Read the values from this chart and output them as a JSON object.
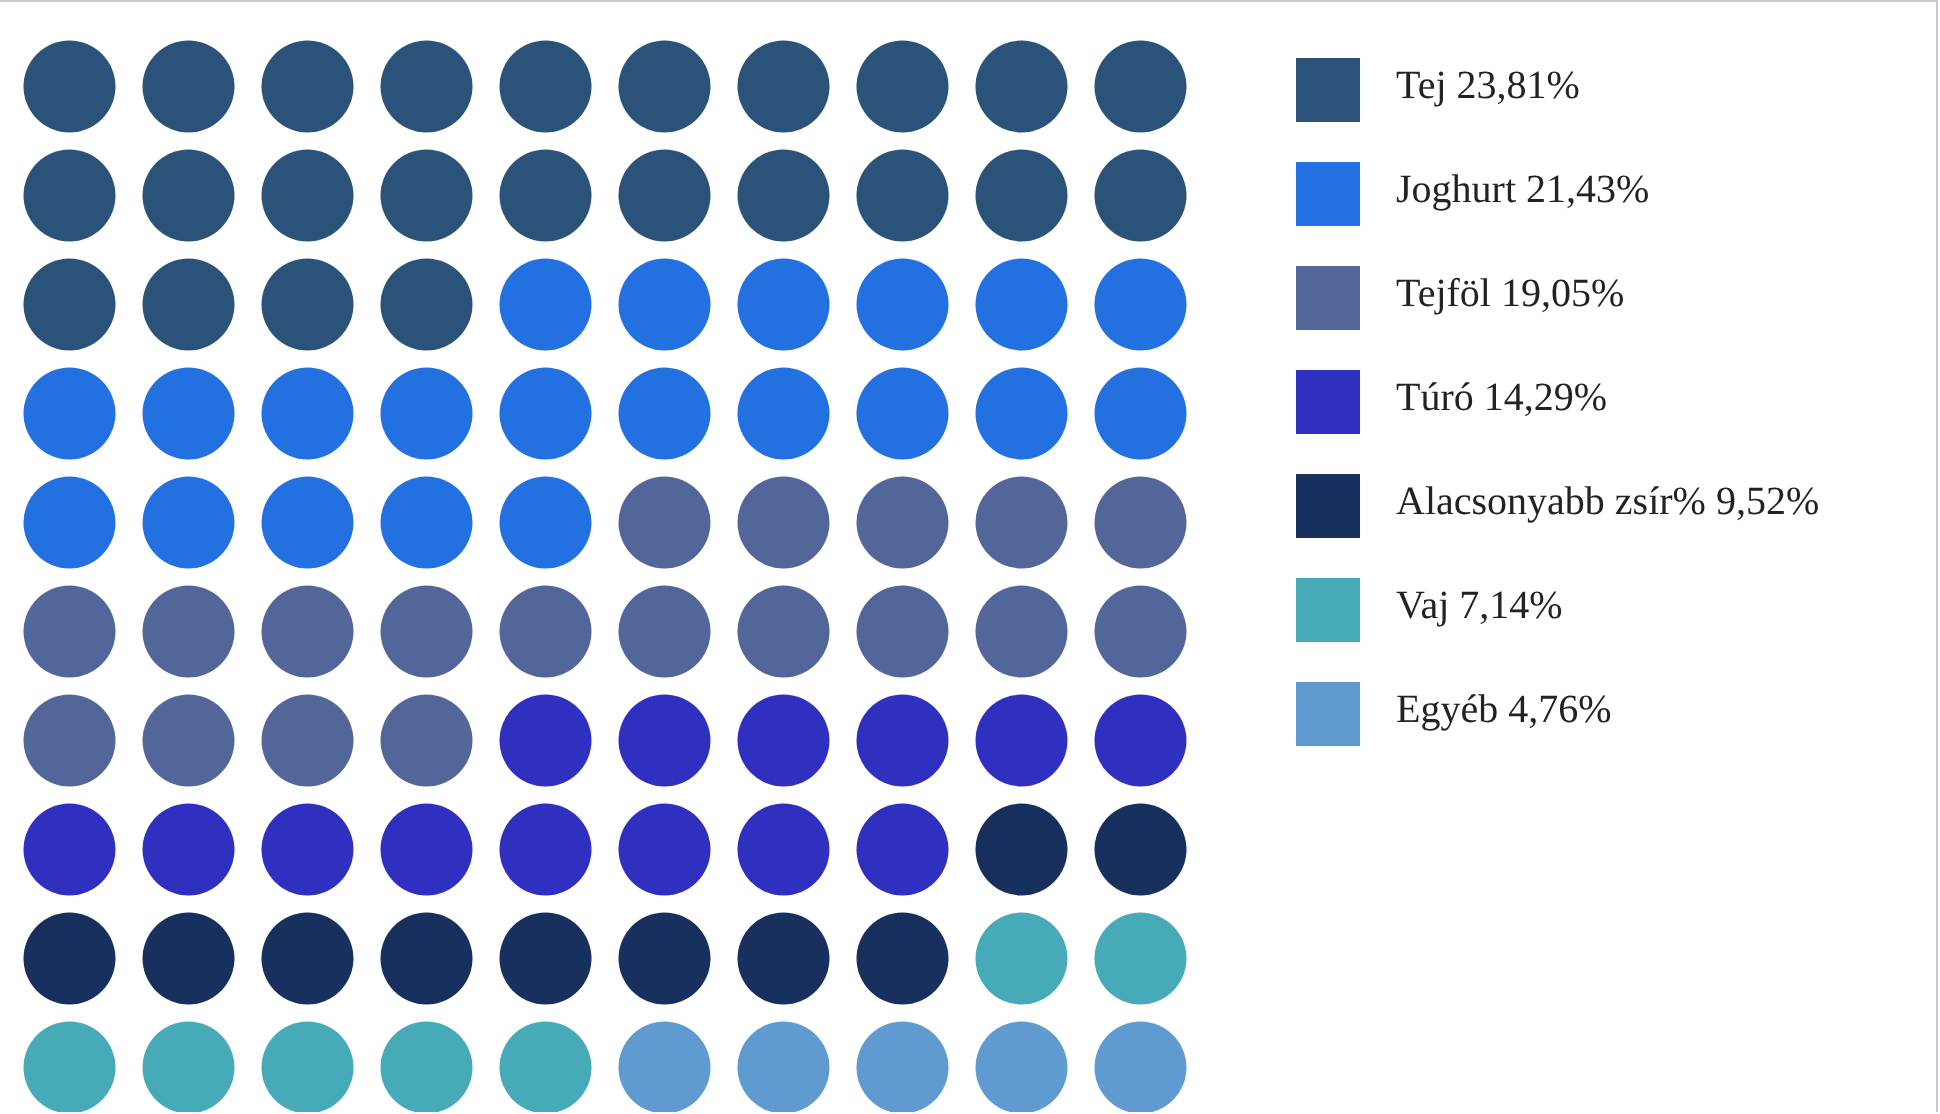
{
  "chart_data": {
    "type": "other",
    "legend": "right",
    "series": [
      {
        "name": "Tej",
        "color": "#2b5278",
        "values": [
          23.81
        ],
        "value_labels": [
          "23,81%"
        ]
      },
      {
        "name": "Joghurt",
        "color": "#2370e0",
        "values": [
          21.43
        ],
        "value_labels": [
          "21,43%"
        ]
      },
      {
        "name": "Tejföl",
        "color": "#53669a",
        "values": [
          19.05
        ],
        "value_labels": [
          "19,05%"
        ]
      },
      {
        "name": "Túró",
        "color": "#2f2fc0",
        "values": [
          14.29
        ],
        "value_labels": [
          "14,29%"
        ]
      },
      {
        "name": "Alacsonyabb zsír%",
        "color": "#17305e",
        "values": [
          9.52
        ],
        "value_labels": [
          "9,52%"
        ]
      },
      {
        "name": "Vaj",
        "color": "#46aab8",
        "values": [
          7.14
        ],
        "value_labels": [
          "7,14%"
        ]
      },
      {
        "name": "Egyéb",
        "color": "#5f9bd0",
        "values": [
          4.76
        ],
        "value_labels": [
          "4,76%"
        ]
      }
    ]
  }
}
